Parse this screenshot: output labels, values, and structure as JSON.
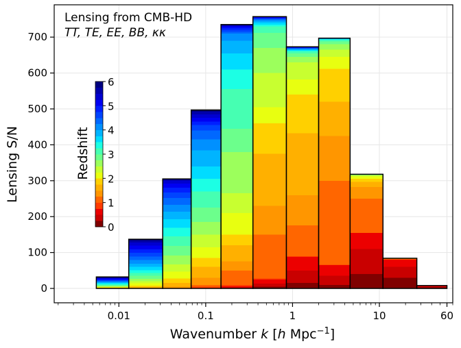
{
  "chart_data": {
    "type": "bar",
    "title_line1": "Lensing from CMB-HD",
    "title_line2": "TT, TE, EE, BB, κκ",
    "xlabel": "Wavenumber k [h Mpc⁻¹]",
    "xlabel_parts": {
      "pre": "Wavenumber ",
      "k": "k",
      "mid": " [",
      "h": "h",
      "unit": " Mpc",
      "sup": "−1",
      "post": "]"
    },
    "ylabel": "Lensing S/N",
    "x_scale": "log",
    "xlim": [
      0.0018,
      70
    ],
    "ylim": [
      -40,
      790
    ],
    "grid": true,
    "xticks": [
      {
        "v": 0.01,
        "label": "0.01"
      },
      {
        "v": 0.1,
        "label": "0.1"
      },
      {
        "v": 1,
        "label": "1"
      },
      {
        "v": 10,
        "label": "10"
      },
      {
        "v": 60,
        "label": "60"
      }
    ],
    "yticks": [
      0,
      100,
      200,
      300,
      400,
      500,
      600,
      700
    ],
    "bin_edges": [
      0.0055,
      0.013,
      0.032,
      0.068,
      0.15,
      0.35,
      0.85,
      2.0,
      4.6,
      11,
      27,
      60
    ],
    "totals": [
      32,
      137,
      305,
      497,
      735,
      757,
      673,
      697,
      318,
      84,
      8
    ],
    "redshift_edges": [
      0,
      0.25,
      0.5,
      0.75,
      1,
      1.25,
      1.5,
      1.75,
      2,
      2.25,
      2.5,
      2.75,
      3,
      3.25,
      3.5,
      3.75,
      4,
      4.25,
      4.5,
      4.75,
      5,
      5.25,
      5.5,
      5.75,
      6
    ],
    "cumulative": [
      [
        0,
        0,
        0,
        0,
        0.2,
        0.4,
        1,
        2,
        3,
        4,
        5,
        7,
        9,
        11,
        13,
        15,
        17,
        19,
        21,
        23,
        25,
        27,
        29,
        31,
        32
      ],
      [
        0,
        0,
        0,
        0,
        0.2,
        0.6,
        1.3,
        4,
        8,
        14,
        20,
        27,
        35,
        43,
        51,
        60,
        69,
        79,
        89,
        99,
        109,
        119,
        128,
        133,
        137
      ],
      [
        0,
        0,
        0,
        0,
        0.5,
        1.5,
        5,
        15,
        28,
        47,
        67,
        92,
        118,
        145,
        169,
        193,
        214,
        233,
        252,
        267,
        281,
        292,
        300,
        304,
        305
      ],
      [
        0,
        0,
        0,
        0,
        5,
        10,
        30,
        60,
        85,
        115,
        150,
        185,
        225,
        270,
        305,
        340,
        385,
        415,
        440,
        455,
        465,
        475,
        485,
        492,
        497
      ],
      [
        0,
        1,
        3,
        6,
        10,
        50,
        75,
        120,
        150,
        210,
        265,
        380,
        445,
        555,
        610,
        655,
        690,
        710,
        715,
        720,
        726,
        730,
        732,
        734,
        735
      ],
      [
        0,
        5,
        13,
        25,
        28,
        150,
        230,
        375,
        460,
        505,
        600,
        670,
        712,
        730,
        735,
        740,
        744,
        748,
        750,
        752,
        754,
        755,
        756,
        756.5,
        757
      ],
      [
        0,
        15,
        50,
        88,
        90,
        176,
        260,
        432,
        540,
        582,
        630,
        645,
        655,
        660,
        662,
        664,
        666,
        668,
        669,
        670,
        671,
        672,
        672.5,
        672.8,
        673
      ],
      [
        0,
        10,
        35,
        65,
        66,
        300,
        425,
        520,
        612,
        645,
        665,
        680,
        688,
        692,
        694,
        695,
        695.5,
        696,
        696.3,
        696.6,
        696.8,
        697,
        697,
        697,
        697
      ],
      [
        0,
        40,
        110,
        155,
        155,
        250,
        282,
        297,
        305,
        312,
        315,
        316,
        317,
        317.5,
        318,
        318,
        318,
        318,
        318,
        318,
        318,
        318,
        318,
        318,
        318
      ],
      [
        0,
        30,
        60,
        80,
        80,
        82,
        83,
        83.5,
        84,
        84,
        84,
        84,
        84,
        84,
        84,
        84,
        84,
        84,
        84,
        84,
        84,
        84,
        84,
        84,
        84
      ],
      [
        0,
        3,
        5,
        7,
        7,
        7.5,
        8,
        8,
        8,
        8,
        8,
        8,
        8,
        8,
        8,
        8,
        8,
        8,
        8,
        8,
        8,
        8,
        8,
        8,
        8
      ]
    ],
    "colorbar": {
      "label": "Redshift",
      "ticks": [
        "0",
        "1",
        "2",
        "3",
        "4",
        "5",
        "6"
      ],
      "colors": [
        "#800000",
        "#c90000",
        "#ec0000",
        "#ff3c00",
        "#ff6600",
        "#ff9600",
        "#ffb000",
        "#ffd000",
        "#e8ff10",
        "#c8ff30",
        "#9cff5c",
        "#6cff8c",
        "#46ffb2",
        "#1cffe4",
        "#00dcff",
        "#00b4ff",
        "#0090ff",
        "#0068ff",
        "#0044ff",
        "#0020ff",
        "#0000f2",
        "#0000d0",
        "#0000aa",
        "#000080"
      ]
    }
  }
}
